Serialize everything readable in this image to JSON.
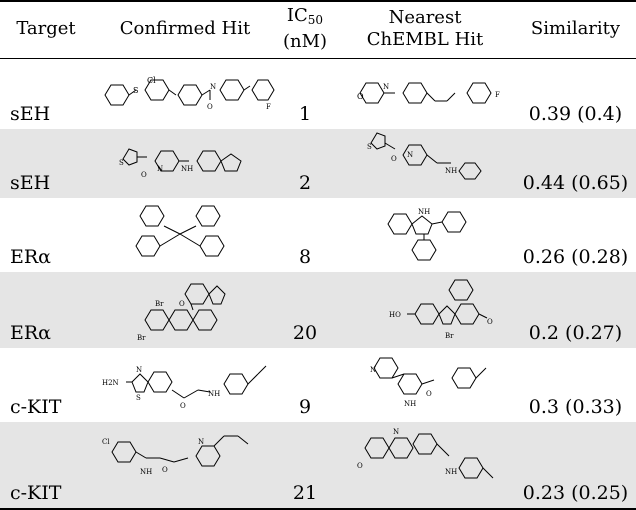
{
  "header": {
    "target": "Target",
    "confirmed_hit": "Confirmed Hit",
    "ic50_label": "IC",
    "ic50_sub": "50",
    "ic50_unit": "(nM)",
    "nearest_line1": "Nearest",
    "nearest_line2": "ChEMBL Hit",
    "similarity": "Similarity"
  },
  "rows": [
    {
      "target": "sEH",
      "ic50": "1",
      "similarity": "0.39 (0.4)",
      "hit_atoms": [
        "Cl",
        "S",
        "N",
        "O",
        "F"
      ],
      "nearest_atoms": [
        "O",
        "N",
        "F"
      ]
    },
    {
      "target": "sEH",
      "ic50": "2",
      "similarity": "0.44 (0.65)",
      "hit_atoms": [
        "S",
        "O",
        "N",
        "NH"
      ],
      "nearest_atoms": [
        "S",
        "O",
        "N",
        "NH"
      ]
    },
    {
      "target": "ERα",
      "ic50": "8",
      "similarity": "0.26 (0.28)",
      "hit_atoms": [],
      "nearest_atoms": [
        "NH"
      ]
    },
    {
      "target": "ERα",
      "ic50": "20",
      "similarity": "0.2 (0.27)",
      "hit_atoms": [
        "Br",
        "O"
      ],
      "nearest_atoms": [
        "HO",
        "O",
        "Br"
      ]
    },
    {
      "target": "c-KIT",
      "ic50": "9",
      "similarity": "0.3 (0.33)",
      "hit_atoms": [
        "H2N",
        "S",
        "N",
        "O",
        "NH"
      ],
      "nearest_atoms": [
        "N",
        "NH",
        "O"
      ]
    },
    {
      "target": "c-KIT",
      "ic50": "21",
      "similarity": "0.23 (0.25)",
      "hit_atoms": [
        "Cl",
        "NH",
        "O",
        "N"
      ],
      "nearest_atoms": [
        "N",
        "O",
        "NH"
      ]
    }
  ]
}
